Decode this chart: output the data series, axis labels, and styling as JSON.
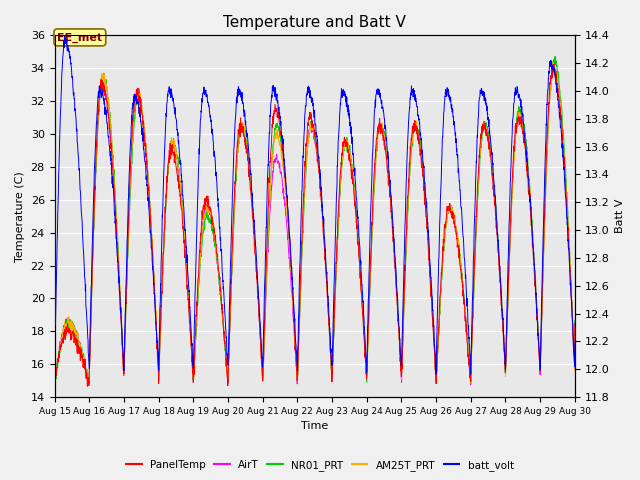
{
  "title": "Temperature and Batt V",
  "xlabel": "Time",
  "ylabel_left": "Temperature (C)",
  "ylabel_right": "Batt V",
  "ylim_left": [
    14,
    36
  ],
  "ylim_right": [
    11.8,
    14.4
  ],
  "xtick_labels": [
    "Aug 15",
    "Aug 16",
    "Aug 17",
    "Aug 18",
    "Aug 19",
    "Aug 20",
    "Aug 21",
    "Aug 22",
    "Aug 23",
    "Aug 24",
    "Aug 25",
    "Aug 26",
    "Aug 27",
    "Aug 28",
    "Aug 29",
    "Aug 30"
  ],
  "colors": {
    "PanelTemp": "#ff0000",
    "AirT": "#ff00ff",
    "NR01_PRT": "#00cc00",
    "AM25T_PRT": "#ffaa00",
    "batt_volt": "#0000ff"
  },
  "background_color": "#f0f0f0",
  "plot_bg_color": "#e8e8e8",
  "grid_color": "#ffffff",
  "title_fontsize": 11,
  "annotation_text": "EE_met",
  "annotation_color": "#880000",
  "annotation_bg": "#ffff99",
  "annotation_edge": "#886600"
}
